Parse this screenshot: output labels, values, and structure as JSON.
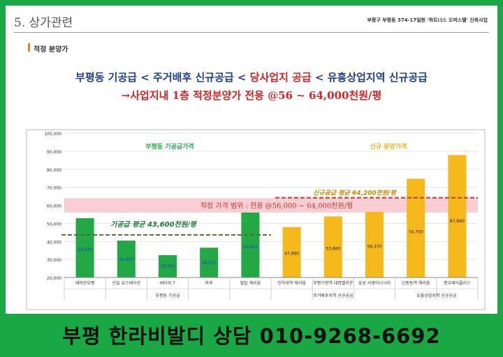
{
  "header": {
    "section_title": "5. 상가관련",
    "project_label": "부평구 부평동 374-17일원 '하트너스 오피스텔' 신축사업",
    "subheader": "적정 분양가"
  },
  "headline": {
    "line1_a": "부평동 기공급 < 주거배후 신규공급 < ",
    "line1_b": "당사업지 공급",
    "line1_c": " < 유흥상업지역 신규공급",
    "line2": "→사업지내 1층 적정분양가 전용 @56 ~ 64,000천원/평"
  },
  "colors": {
    "existing": "#22a845",
    "new": "#f5b91c",
    "headline_blue": "#1f3f8f",
    "headline_red": "#d42323",
    "band": "#f7c6cc",
    "avg_existing_line": "#556b2f",
    "avg_new_line": "#c0392b"
  },
  "chart_data": {
    "type": "bar",
    "ylim": [
      20000,
      100000
    ],
    "y_ticks": [
      20000,
      30000,
      40000,
      50000,
      60000,
      70000,
      80000,
      90000,
      100000
    ],
    "y_tick_labels": [
      "20,000",
      "30,000",
      "40,000",
      "50,000",
      "60,000",
      "70,000",
      "80,000",
      "90,000",
      "100,000"
    ],
    "categories": [
      "래미안부평",
      "신일 유스테이션",
      "M타워 7",
      "마루",
      "힐탑 해리움",
      "인하대역 헤리움",
      "부평구청역 대명벨리온",
      "효성 서영아너시티",
      "신중동역 헤리움",
      "청우제이플러스"
    ],
    "values": [
      52840,
      40450,
      32400,
      36510,
      56010,
      47960,
      53860,
      56370,
      74750,
      87890
    ],
    "value_labels": [
      "52,840",
      "40,450",
      "32,400",
      "36,510",
      "56,010",
      "47,960",
      "53,860",
      "56,370",
      "74,750",
      "87,890"
    ],
    "bar_groups": [
      "existing",
      "existing",
      "existing",
      "existing",
      "existing",
      "new",
      "new",
      "new",
      "new",
      "new"
    ],
    "groups": [
      {
        "label": "부평동 기공급",
        "from": 0,
        "to": 4
      },
      {
        "label": "주거배후지역 신규공급",
        "from": 5,
        "to": 7
      },
      {
        "label": "유흥상업지역 신규공급",
        "from": 8,
        "to": 9
      }
    ],
    "legend_existing": "부평동 기공급가격",
    "legend_new": "신규 분양가격",
    "band": {
      "from": 56000,
      "to": 64000,
      "label": "적정 가격 범위 : 전용 @56,000 ~ 64,000천원/평"
    },
    "avg_existing": {
      "value": 43600,
      "label": "기공급 평균 43,600천원/평"
    },
    "avg_new": {
      "value": 64200,
      "label": "신규공급 평균 64,200천원/평"
    }
  },
  "banner": {
    "text": "부평 한라비발디 상담 010-9268-6692"
  }
}
